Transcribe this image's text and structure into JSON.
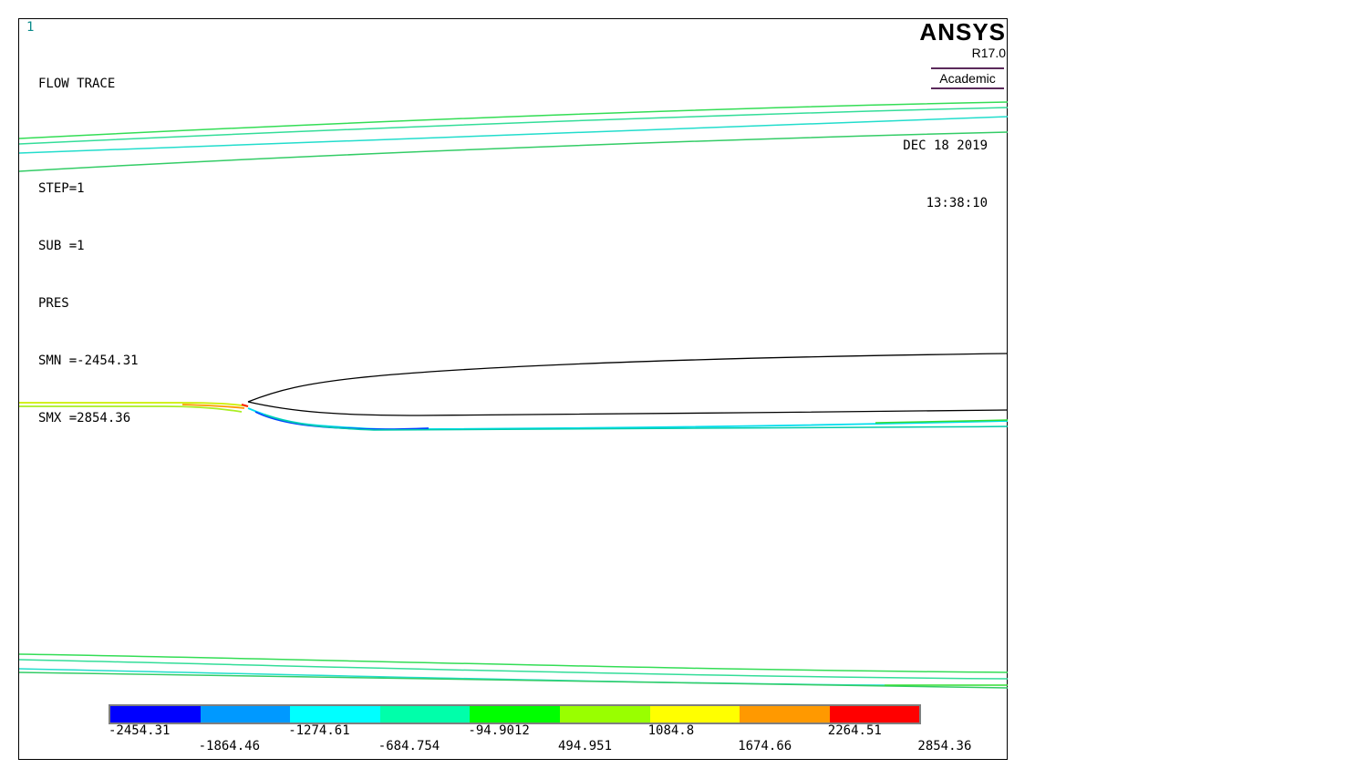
{
  "window": {
    "number": "1"
  },
  "info": {
    "title": "FLOW TRACE",
    "step": "STEP=1",
    "sub": "SUB =1",
    "result": "PRES",
    "smn": "SMN =-2454.31",
    "smx": "SMX =2854.36"
  },
  "brand": {
    "name": "ANSYS",
    "version": "R17.0",
    "edition": "Academic"
  },
  "datetime": {
    "date": "DEC 18 2019",
    "time": "13:38:10"
  },
  "legend": {
    "colors": [
      "#0000ff",
      "#0099ff",
      "#00ffff",
      "#00ffaa",
      "#00ff00",
      "#99ff00",
      "#ffff00",
      "#ff9900",
      "#ff0000"
    ],
    "labels_top": [
      "-2454.31",
      "-1274.61",
      "-94.9012",
      "1084.8",
      "2264.51"
    ],
    "labels_bottom": [
      "-1864.46",
      "-684.754",
      "494.951",
      "1674.66",
      "2854.36"
    ]
  }
}
